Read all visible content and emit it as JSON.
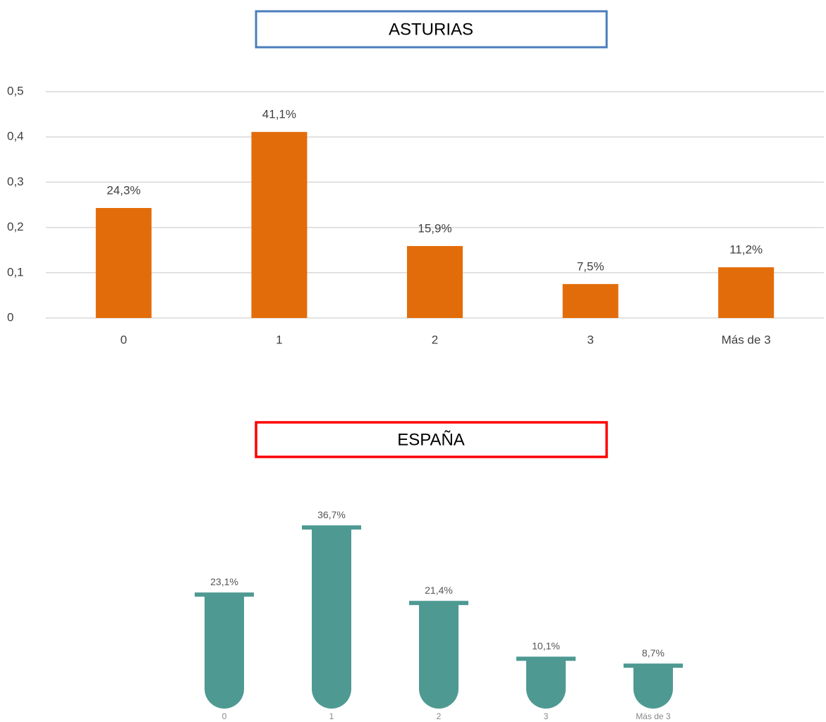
{
  "chart_data": [
    {
      "type": "bar",
      "title": "ASTURIAS",
      "categories": [
        "0",
        "1",
        "2",
        "3",
        "Más de 3"
      ],
      "values": [
        0.243,
        0.411,
        0.159,
        0.075,
        0.112
      ],
      "value_labels": [
        "24,3%",
        "41,1%",
        "15,9%",
        "7,5%",
        "11,2%"
      ],
      "color": "#e36c0a",
      "ylim": [
        0,
        0.5
      ],
      "yticks": [
        0,
        {
          "value": 0.1,
          "label": "0,1"
        },
        {
          "value": 0.2,
          "label": "0,2"
        },
        {
          "value": 0.3,
          "label": "0,3"
        },
        {
          "value": 0.4,
          "label": "0,4"
        },
        {
          "value": 0.5,
          "label": "0,5"
        }
      ],
      "grid": true
    },
    {
      "type": "tube",
      "title": "ESPAÑA",
      "categories": [
        "0",
        "1",
        "2",
        "3",
        "Más de 3"
      ],
      "values": [
        23.1,
        36.7,
        21.4,
        10.1,
        8.7
      ],
      "value_labels": [
        "23,1%",
        "36,7%",
        "21,4%",
        "10,1%",
        "8,7%"
      ],
      "color": "#4e9a93"
    }
  ]
}
